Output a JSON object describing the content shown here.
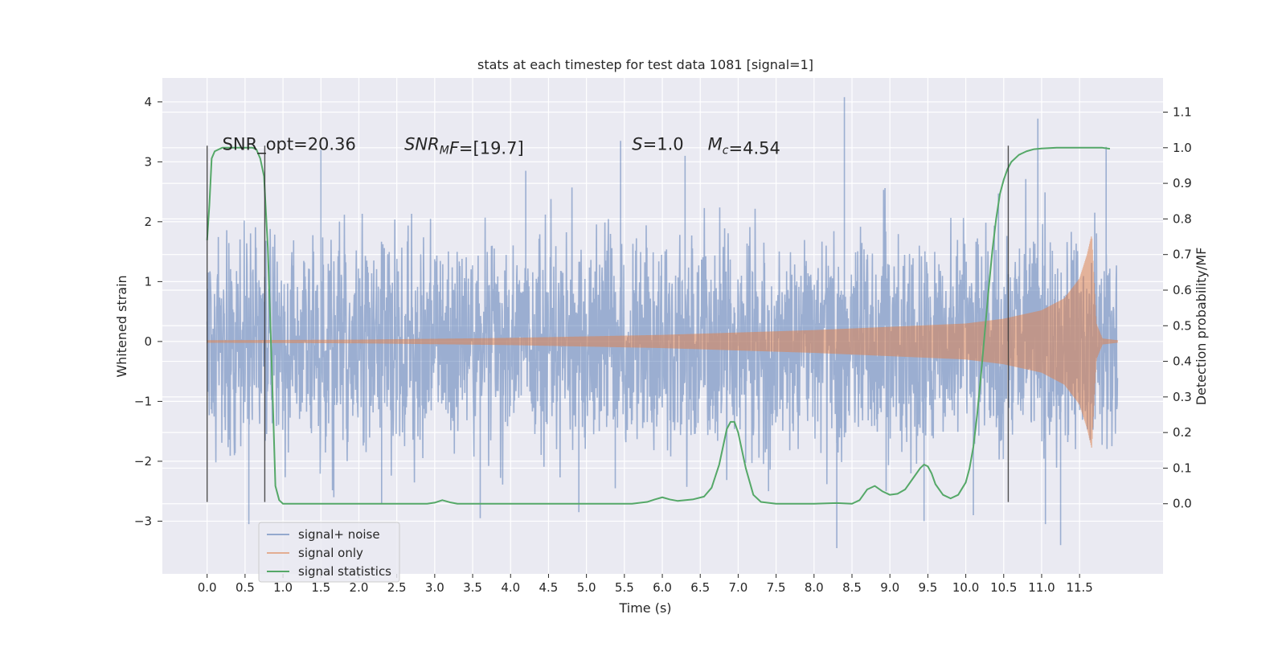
{
  "chart_data": {
    "type": "line",
    "title": "stats at each timestep for test data 1081 [signal=1]",
    "xlabel": "Time (s)",
    "ylabel": "Whitened strain",
    "y2label": "Detection probability/MF",
    "xlim": [
      -0.59,
      12.6
    ],
    "ylim": [
      -3.88,
      4.4
    ],
    "y2lim": [
      -0.197,
      1.196
    ],
    "grid": true,
    "xticks": [
      0.0,
      0.5,
      1.0,
      1.5,
      2.0,
      2.5,
      3.0,
      3.5,
      4.0,
      4.5,
      5.0,
      5.5,
      6.0,
      6.5,
      7.0,
      7.5,
      8.0,
      8.5,
      9.0,
      9.5,
      10.0,
      10.5,
      11.0,
      11.5
    ],
    "xtick_labels": [
      "0.0",
      "0.5",
      "1.0",
      "1.5",
      "2.0",
      "2.5",
      "3.0",
      "3.5",
      "4.0",
      "4.5",
      "5.0",
      "5.5",
      "6.0",
      "6.5",
      "7.0",
      "7.5",
      "8.0",
      "8.5",
      "9.0",
      "9.5",
      "10.0",
      "10.5",
      "11.0",
      "11.5"
    ],
    "yticks": [
      -3,
      -2,
      -1,
      0,
      1,
      2,
      3,
      4
    ],
    "ytick_labels": [
      "−3",
      "−2",
      "−1",
      "0",
      "1",
      "2",
      "3",
      "4"
    ],
    "y2ticks": [
      0.0,
      0.1,
      0.2,
      0.3,
      0.4,
      0.5,
      0.6,
      0.7,
      0.8,
      0.9,
      1.0,
      1.1
    ],
    "y2tick_labels": [
      "0.0",
      "0.1",
      "0.2",
      "0.3",
      "0.4",
      "0.5",
      "0.6",
      "0.7",
      "0.8",
      "0.9",
      "1.0",
      "1.1"
    ],
    "annotations": [
      {
        "x": 0.2,
        "y": 3.2,
        "text": "SNR_opt=20.36"
      },
      {
        "x": 2.6,
        "y": 3.2,
        "parts": [
          {
            "t": "SNR",
            "i": true
          },
          {
            "t": "M",
            "i": true,
            "sub": true
          },
          {
            "t": "F",
            "i": true
          },
          {
            "t": "=[19.7]",
            "i": false
          }
        ]
      },
      {
        "x": 5.6,
        "y": 3.2,
        "parts": [
          {
            "t": "S",
            "i": true
          },
          {
            "t": "=1.0",
            "i": false
          }
        ]
      },
      {
        "x": 6.6,
        "y": 3.2,
        "parts": [
          {
            "t": "M",
            "i": true
          },
          {
            "t": "c",
            "i": true,
            "sub": true
          },
          {
            "t": "=4.54",
            "i": false
          }
        ]
      }
    ],
    "vlines": [
      {
        "x": 0.0,
        "ymin": -2.68,
        "ymax": 3.27
      },
      {
        "x": 0.76,
        "ymin": -2.68,
        "ymax": 3.27
      },
      {
        "x": 10.56,
        "ymin": -2.68,
        "ymax": 3.27
      }
    ],
    "legend": {
      "placement": "lower-left"
    },
    "colors": {
      "noise": "#4c72b0",
      "signal": "#dd8452",
      "stats": "#55a868",
      "background": "#eaeaf2"
    },
    "series": [
      {
        "name": "signal+ noise",
        "axis": "left",
        "style": "dense-noise",
        "t_end": 12.0,
        "envelope_core": 1.4,
        "spikes": [
          [
            0.55,
            -3.05
          ],
          [
            1.5,
            3.2
          ],
          [
            1.67,
            -2.6
          ],
          [
            3.6,
            -2.95
          ],
          [
            4.9,
            -2.85
          ],
          [
            5.45,
            3.35
          ],
          [
            5.38,
            -2.45
          ],
          [
            7.4,
            -2.5
          ],
          [
            8.3,
            -3.45
          ],
          [
            8.4,
            4.08
          ],
          [
            8.95,
            -2.5
          ],
          [
            9.45,
            -3.0
          ],
          [
            10.95,
            3.72
          ],
          [
            11.05,
            -3.05
          ],
          [
            11.25,
            -3.4
          ],
          [
            11.85,
            3.25
          ],
          [
            10.1,
            -2.9
          ],
          [
            2.3,
            -2.7
          ],
          [
            6.3,
            3.1
          ],
          [
            4.2,
            2.85
          ]
        ]
      },
      {
        "name": "signal only",
        "axis": "left",
        "style": "chirp",
        "t_start": 0.0,
        "t_merge": 11.66,
        "t_end": 12.0,
        "peak_amplitude": 1.78,
        "envelope": [
          [
            0.0,
            0.02
          ],
          [
            2.0,
            0.03
          ],
          [
            4.0,
            0.06
          ],
          [
            6.0,
            0.11
          ],
          [
            8.0,
            0.19
          ],
          [
            10.0,
            0.3
          ],
          [
            10.5,
            0.38
          ],
          [
            11.0,
            0.52
          ],
          [
            11.3,
            0.72
          ],
          [
            11.5,
            1.05
          ],
          [
            11.6,
            1.45
          ],
          [
            11.66,
            1.78
          ],
          [
            11.72,
            0.3
          ],
          [
            11.8,
            0.05
          ],
          [
            12.0,
            0.02
          ]
        ]
      },
      {
        "name": "signal statistics",
        "axis": "right",
        "x": [
          0.0,
          0.03,
          0.06,
          0.1,
          0.15,
          0.2,
          0.3,
          0.4,
          0.5,
          0.6,
          0.65,
          0.7,
          0.75,
          0.8,
          0.85,
          0.9,
          0.95,
          1.0,
          1.1,
          1.5,
          2.0,
          2.5,
          2.9,
          3.0,
          3.1,
          3.2,
          3.3,
          3.5,
          4.0,
          5.0,
          5.6,
          5.8,
          5.9,
          6.0,
          6.1,
          6.2,
          6.4,
          6.55,
          6.65,
          6.75,
          6.85,
          6.9,
          6.95,
          7.0,
          7.1,
          7.2,
          7.3,
          7.5,
          8.0,
          8.3,
          8.5,
          8.6,
          8.7,
          8.8,
          8.9,
          9.0,
          9.1,
          9.2,
          9.3,
          9.4,
          9.45,
          9.5,
          9.55,
          9.6,
          9.7,
          9.8,
          9.9,
          10.0,
          10.05,
          10.1,
          10.15,
          10.2,
          10.25,
          10.3,
          10.35,
          10.4,
          10.45,
          10.5,
          10.55,
          10.6,
          10.7,
          10.8,
          10.9,
          11.0,
          11.2,
          11.5,
          11.8,
          11.9
        ],
        "values": [
          0.74,
          0.84,
          0.97,
          0.99,
          0.995,
          1.0,
          1.0,
          1.0,
          1.0,
          1.0,
          0.995,
          0.97,
          0.92,
          0.72,
          0.4,
          0.05,
          0.01,
          0.0,
          0.0,
          0.0,
          0.0,
          0.0,
          0.0,
          0.003,
          0.01,
          0.004,
          0.0,
          0.0,
          0.0,
          0.0,
          0.0,
          0.005,
          0.012,
          0.018,
          0.012,
          0.008,
          0.012,
          0.02,
          0.045,
          0.11,
          0.21,
          0.23,
          0.23,
          0.2,
          0.1,
          0.025,
          0.005,
          0.0,
          0.0,
          0.002,
          0.0,
          0.01,
          0.04,
          0.05,
          0.035,
          0.025,
          0.028,
          0.04,
          0.07,
          0.1,
          0.11,
          0.105,
          0.085,
          0.055,
          0.025,
          0.015,
          0.025,
          0.06,
          0.1,
          0.16,
          0.25,
          0.36,
          0.48,
          0.6,
          0.71,
          0.8,
          0.87,
          0.91,
          0.94,
          0.96,
          0.98,
          0.99,
          0.996,
          0.998,
          1.0,
          1.0,
          1.0,
          0.997
        ]
      }
    ]
  }
}
